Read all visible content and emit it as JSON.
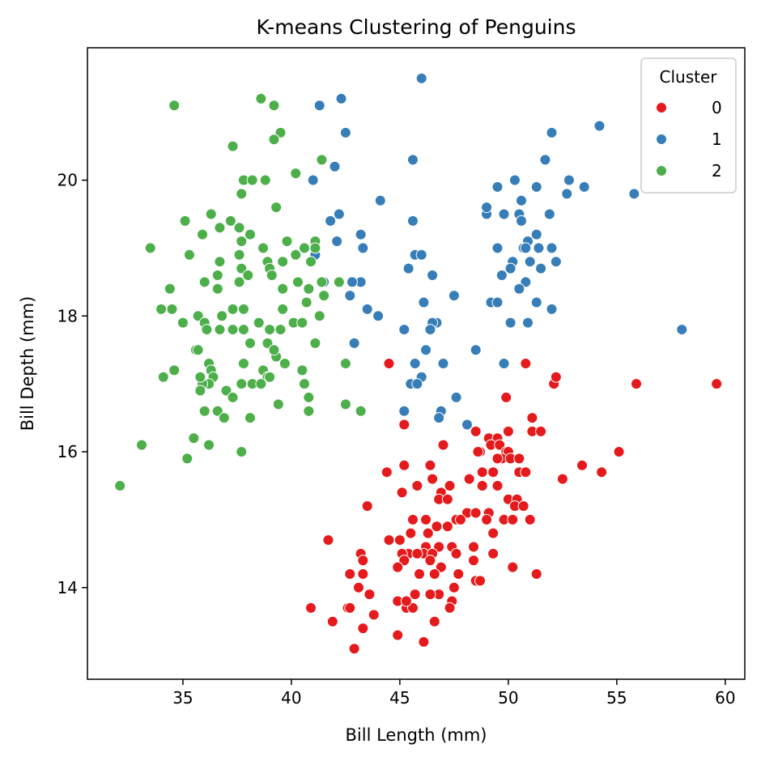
{
  "chart_data": {
    "type": "scatter",
    "title": "K-means Clustering of Penguins",
    "xlabel": "Bill Length (mm)",
    "ylabel": "Bill Depth (mm)",
    "xlim": [
      30.6,
      60.9
    ],
    "ylim": [
      12.65,
      21.95
    ],
    "xticks": [
      35,
      40,
      45,
      50,
      55,
      60
    ],
    "yticks": [
      14,
      16,
      18,
      20
    ],
    "grid": false,
    "legend": {
      "title": "Cluster",
      "position": "top-right"
    },
    "series": [
      {
        "name": "0",
        "color": "#e41a1c",
        "points": [
          [
            44.5,
            17.3
          ],
          [
            50.8,
            17.3
          ],
          [
            45.2,
            16.4
          ],
          [
            49.9,
            16.8
          ],
          [
            47.0,
            16.1
          ],
          [
            48.5,
            16.3
          ],
          [
            51.1,
            16.5
          ],
          [
            52.1,
            17.0
          ],
          [
            52.2,
            17.1
          ],
          [
            55.9,
            17.0
          ],
          [
            59.6,
            17.0
          ],
          [
            51.1,
            16.3
          ],
          [
            51.5,
            16.3
          ],
          [
            49.1,
            16.2
          ],
          [
            49.5,
            16.2
          ],
          [
            50.0,
            16.3
          ],
          [
            49.2,
            16.1
          ],
          [
            49.6,
            16.1
          ],
          [
            49.9,
            16.0
          ],
          [
            50.0,
            16.0
          ],
          [
            48.7,
            16.0
          ],
          [
            48.6,
            16.0
          ],
          [
            49.7,
            15.9
          ],
          [
            50.1,
            15.9
          ],
          [
            49.5,
            15.9
          ],
          [
            55.1,
            16.0
          ],
          [
            45.2,
            15.8
          ],
          [
            46.4,
            15.8
          ],
          [
            50.5,
            15.9
          ],
          [
            49.3,
            15.7
          ],
          [
            48.8,
            15.7
          ],
          [
            50.5,
            15.7
          ],
          [
            50.8,
            15.7
          ],
          [
            53.4,
            15.8
          ],
          [
            54.3,
            15.7
          ],
          [
            44.4,
            15.7
          ],
          [
            46.5,
            15.6
          ],
          [
            48.2,
            15.6
          ],
          [
            52.5,
            15.6
          ],
          [
            45.8,
            15.5
          ],
          [
            47.3,
            15.5
          ],
          [
            48.8,
            15.5
          ],
          [
            49.5,
            15.5
          ],
          [
            45.1,
            15.4
          ],
          [
            46.9,
            15.4
          ],
          [
            46.8,
            15.3
          ],
          [
            47.2,
            15.3
          ],
          [
            50.0,
            15.3
          ],
          [
            50.4,
            15.3
          ],
          [
            50.3,
            15.2
          ],
          [
            43.5,
            15.2
          ],
          [
            50.7,
            15.2
          ],
          [
            49.1,
            15.1
          ],
          [
            48.1,
            15.1
          ],
          [
            48.5,
            15.1
          ],
          [
            47.6,
            15.0
          ],
          [
            47.8,
            15.0
          ],
          [
            49.0,
            15.0
          ],
          [
            49.8,
            15.0
          ],
          [
            50.2,
            15.0
          ],
          [
            51.0,
            15.0
          ],
          [
            46.2,
            15.0
          ],
          [
            45.6,
            15.0
          ],
          [
            47.2,
            14.9
          ],
          [
            46.7,
            14.9
          ],
          [
            46.3,
            14.8
          ],
          [
            49.3,
            14.8
          ],
          [
            45.5,
            14.8
          ],
          [
            45.0,
            14.7
          ],
          [
            41.7,
            14.7
          ],
          [
            44.5,
            14.7
          ],
          [
            46.2,
            14.6
          ],
          [
            46.8,
            14.6
          ],
          [
            47.4,
            14.6
          ],
          [
            48.4,
            14.6
          ],
          [
            45.3,
            14.5
          ],
          [
            45.4,
            14.5
          ],
          [
            46.1,
            14.5
          ],
          [
            45.8,
            14.5
          ],
          [
            45.1,
            14.5
          ],
          [
            46.5,
            14.5
          ],
          [
            47.6,
            14.5
          ],
          [
            49.3,
            14.5
          ],
          [
            43.2,
            14.5
          ],
          [
            45.2,
            14.4
          ],
          [
            46.4,
            14.4
          ],
          [
            43.3,
            14.4
          ],
          [
            48.4,
            14.4
          ],
          [
            44.9,
            14.3
          ],
          [
            46.9,
            14.3
          ],
          [
            50.2,
            14.3
          ],
          [
            42.7,
            14.2
          ],
          [
            43.3,
            14.2
          ],
          [
            45.9,
            14.2
          ],
          [
            48.5,
            14.1
          ],
          [
            48.7,
            14.1
          ],
          [
            51.3,
            14.2
          ],
          [
            46.6,
            14.2
          ],
          [
            47.7,
            14.2
          ],
          [
            43.1,
            14.0
          ],
          [
            47.5,
            14.0
          ],
          [
            46.8,
            13.9
          ],
          [
            46.4,
            13.9
          ],
          [
            45.7,
            13.9
          ],
          [
            43.6,
            13.9
          ],
          [
            45.3,
            13.7
          ],
          [
            45.6,
            13.7
          ],
          [
            42.6,
            13.7
          ],
          [
            42.7,
            13.7
          ],
          [
            40.9,
            13.7
          ],
          [
            47.4,
            13.8
          ],
          [
            47.3,
            13.7
          ],
          [
            44.9,
            13.8
          ],
          [
            45.3,
            13.8
          ],
          [
            46.6,
            13.5
          ],
          [
            43.8,
            13.6
          ],
          [
            41.9,
            13.5
          ],
          [
            43.3,
            13.4
          ],
          [
            44.9,
            13.3
          ],
          [
            46.1,
            13.2
          ],
          [
            42.9,
            13.1
          ]
        ]
      },
      {
        "name": "1",
        "color": "#377eb8",
        "points": [
          [
            46.0,
            21.5
          ],
          [
            42.3,
            21.2
          ],
          [
            41.3,
            21.1
          ],
          [
            42.5,
            20.7
          ],
          [
            52.0,
            20.7
          ],
          [
            54.2,
            20.8
          ],
          [
            51.7,
            20.3
          ],
          [
            45.6,
            20.3
          ],
          [
            42.0,
            20.2
          ],
          [
            41.0,
            20.0
          ],
          [
            50.3,
            20.0
          ],
          [
            52.8,
            20.0
          ],
          [
            49.5,
            19.9
          ],
          [
            51.3,
            19.9
          ],
          [
            53.5,
            19.9
          ],
          [
            52.7,
            19.8
          ],
          [
            55.8,
            19.8
          ],
          [
            44.1,
            19.7
          ],
          [
            50.6,
            19.7
          ],
          [
            49.0,
            19.5
          ],
          [
            49.8,
            19.5
          ],
          [
            50.5,
            19.5
          ],
          [
            51.9,
            19.5
          ],
          [
            42.2,
            19.5
          ],
          [
            41.8,
            19.4
          ],
          [
            45.6,
            19.4
          ],
          [
            50.6,
            19.4
          ],
          [
            49.0,
            19.6
          ],
          [
            50.9,
            19.1
          ],
          [
            51.3,
            19.2
          ],
          [
            43.2,
            19.2
          ],
          [
            42.1,
            19.1
          ],
          [
            51.0,
            18.8
          ],
          [
            50.7,
            19.0
          ],
          [
            51.4,
            19.0
          ],
          [
            52.0,
            19.0
          ],
          [
            43.3,
            19.0
          ],
          [
            49.5,
            19.0
          ],
          [
            41.1,
            18.9
          ],
          [
            45.7,
            18.9
          ],
          [
            46.0,
            18.9
          ],
          [
            50.8,
            19.0
          ],
          [
            52.2,
            18.8
          ],
          [
            50.2,
            18.8
          ],
          [
            50.1,
            18.7
          ],
          [
            51.5,
            18.7
          ],
          [
            45.4,
            18.7
          ],
          [
            46.5,
            18.6
          ],
          [
            49.7,
            18.6
          ],
          [
            43.2,
            18.5
          ],
          [
            42.8,
            18.5
          ],
          [
            50.8,
            18.5
          ],
          [
            41.5,
            18.5
          ],
          [
            50.5,
            18.4
          ],
          [
            42.7,
            18.3
          ],
          [
            47.5,
            18.3
          ],
          [
            49.2,
            18.2
          ],
          [
            46.1,
            18.2
          ],
          [
            49.5,
            18.2
          ],
          [
            51.3,
            18.2
          ],
          [
            43.5,
            18.1
          ],
          [
            52.0,
            18.1
          ],
          [
            44.0,
            18.0
          ],
          [
            46.7,
            17.9
          ],
          [
            46.5,
            17.9
          ],
          [
            50.1,
            17.9
          ],
          [
            50.9,
            17.9
          ],
          [
            58.0,
            17.8
          ],
          [
            45.2,
            17.8
          ],
          [
            46.4,
            17.8
          ],
          [
            42.9,
            17.6
          ],
          [
            48.5,
            17.5
          ],
          [
            46.2,
            17.5
          ],
          [
            45.7,
            17.3
          ],
          [
            47.0,
            17.3
          ],
          [
            49.8,
            17.3
          ],
          [
            46.0,
            17.1
          ],
          [
            45.5,
            17.0
          ],
          [
            45.8,
            17.0
          ],
          [
            47.6,
            16.8
          ],
          [
            45.2,
            16.6
          ],
          [
            46.9,
            16.6
          ],
          [
            46.8,
            16.5
          ],
          [
            48.1,
            16.4
          ]
        ]
      },
      {
        "name": "2",
        "color": "#4daf4a",
        "points": [
          [
            34.6,
            21.1
          ],
          [
            38.6,
            21.2
          ],
          [
            39.2,
            21.1
          ],
          [
            37.3,
            20.5
          ],
          [
            39.5,
            20.7
          ],
          [
            39.2,
            20.6
          ],
          [
            40.2,
            20.1
          ],
          [
            41.4,
            20.3
          ],
          [
            37.8,
            20.0
          ],
          [
            38.2,
            20.0
          ],
          [
            38.8,
            20.0
          ],
          [
            37.7,
            19.8
          ],
          [
            39.3,
            19.6
          ],
          [
            35.1,
            19.4
          ],
          [
            37.2,
            19.4
          ],
          [
            36.3,
            19.5
          ],
          [
            37.6,
            19.3
          ],
          [
            36.7,
            19.3
          ],
          [
            38.1,
            19.2
          ],
          [
            35.9,
            19.2
          ],
          [
            37.7,
            19.1
          ],
          [
            41.1,
            19.1
          ],
          [
            41.1,
            19.0
          ],
          [
            39.8,
            19.1
          ],
          [
            38.7,
            19.0
          ],
          [
            40.6,
            19.0
          ],
          [
            35.3,
            18.9
          ],
          [
            37.6,
            18.9
          ],
          [
            40.2,
            18.9
          ],
          [
            39.6,
            18.8
          ],
          [
            38.9,
            18.8
          ],
          [
            40.9,
            18.8
          ],
          [
            36.7,
            18.8
          ],
          [
            39.0,
            18.7
          ],
          [
            37.7,
            18.7
          ],
          [
            38.0,
            18.6
          ],
          [
            36.6,
            18.6
          ],
          [
            39.1,
            18.6
          ],
          [
            41.4,
            18.5
          ],
          [
            42.2,
            18.5
          ],
          [
            36.0,
            18.5
          ],
          [
            37.6,
            18.5
          ],
          [
            40.3,
            18.5
          ],
          [
            40.8,
            18.4
          ],
          [
            34.4,
            18.4
          ],
          [
            39.6,
            18.4
          ],
          [
            41.5,
            18.3
          ],
          [
            36.6,
            18.4
          ],
          [
            40.7,
            18.2
          ],
          [
            34.0,
            18.1
          ],
          [
            34.5,
            18.1
          ],
          [
            37.3,
            18.1
          ],
          [
            37.8,
            18.1
          ],
          [
            39.6,
            18.1
          ],
          [
            41.3,
            18.0
          ],
          [
            35.7,
            18.0
          ],
          [
            36.8,
            18.0
          ],
          [
            38.5,
            17.9
          ],
          [
            40.1,
            17.9
          ],
          [
            36.0,
            17.9
          ],
          [
            35.0,
            17.9
          ],
          [
            40.5,
            17.9
          ],
          [
            37.8,
            17.8
          ],
          [
            39.0,
            17.8
          ],
          [
            41.1,
            17.6
          ],
          [
            38.9,
            17.6
          ],
          [
            36.1,
            17.8
          ],
          [
            36.7,
            17.8
          ],
          [
            37.3,
            17.8
          ],
          [
            39.5,
            17.8
          ],
          [
            38.1,
            17.6
          ],
          [
            39.3,
            17.4
          ],
          [
            39.2,
            17.5
          ],
          [
            35.6,
            17.5
          ],
          [
            35.7,
            17.5
          ],
          [
            36.2,
            17.3
          ],
          [
            37.8,
            17.3
          ],
          [
            42.5,
            17.3
          ],
          [
            39.7,
            17.3
          ],
          [
            34.1,
            17.1
          ],
          [
            34.6,
            17.2
          ],
          [
            38.7,
            17.2
          ],
          [
            40.5,
            17.2
          ],
          [
            36.3,
            17.2
          ],
          [
            38.9,
            17.1
          ],
          [
            36.4,
            17.1
          ],
          [
            39.0,
            17.1
          ],
          [
            36.2,
            17.0
          ],
          [
            35.9,
            17.0
          ],
          [
            37.7,
            17.0
          ],
          [
            38.2,
            17.0
          ],
          [
            38.6,
            17.0
          ],
          [
            40.6,
            17.0
          ],
          [
            35.8,
            17.1
          ],
          [
            35.8,
            16.9
          ],
          [
            37.0,
            16.9
          ],
          [
            37.3,
            16.8
          ],
          [
            40.8,
            16.8
          ],
          [
            39.4,
            16.7
          ],
          [
            42.5,
            16.7
          ],
          [
            36.0,
            16.6
          ],
          [
            36.6,
            16.6
          ],
          [
            40.8,
            16.6
          ],
          [
            43.2,
            16.6
          ],
          [
            36.9,
            16.5
          ],
          [
            38.1,
            16.5
          ],
          [
            35.5,
            16.2
          ],
          [
            36.2,
            16.1
          ],
          [
            33.1,
            16.1
          ],
          [
            37.7,
            16.0
          ],
          [
            35.2,
            15.9
          ],
          [
            32.1,
            15.5
          ],
          [
            33.5,
            19.0
          ],
          [
            35.1,
            19.4
          ]
        ]
      }
    ]
  }
}
